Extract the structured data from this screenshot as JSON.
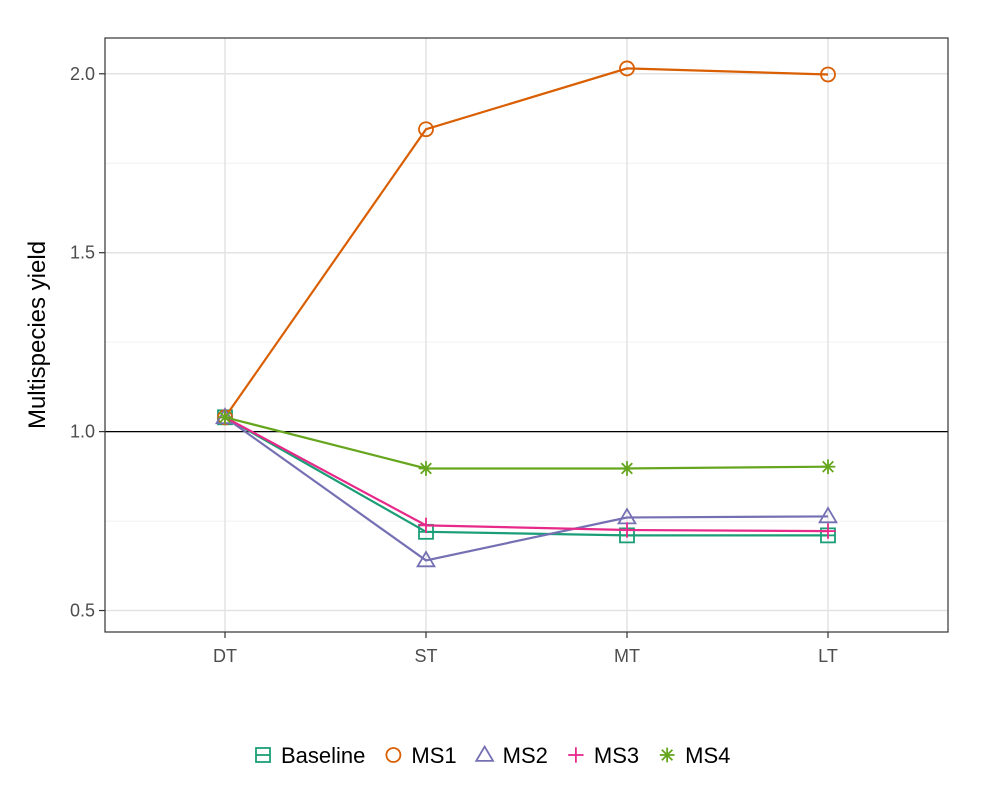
{
  "chart_data": {
    "type": "line",
    "title": "",
    "xlabel": "",
    "ylabel": "Multispecies yield",
    "categories": [
      "DT",
      "ST",
      "MT",
      "LT"
    ],
    "ylim": [
      0.44,
      2.1
    ],
    "yticks": [
      0.5,
      1.0,
      1.5,
      2.0
    ],
    "ytick_labels": [
      "0.5",
      "1.0",
      "1.5",
      "2.0"
    ],
    "reference_line": 1.0,
    "grid": true,
    "legend_position": "bottom",
    "series": [
      {
        "name": "Baseline",
        "color": "#1b9e77",
        "marker": "square-plus",
        "values": [
          1.04,
          0.72,
          0.71,
          0.71
        ]
      },
      {
        "name": "MS1",
        "color": "#d95f02",
        "marker": "circle",
        "values": [
          1.04,
          1.845,
          2.015,
          1.998
        ]
      },
      {
        "name": "MS2",
        "color": "#7570b3",
        "marker": "triangle",
        "values": [
          1.04,
          0.64,
          0.76,
          0.763
        ]
      },
      {
        "name": "MS3",
        "color": "#e7298a",
        "marker": "plus",
        "values": [
          1.04,
          0.738,
          0.725,
          0.722
        ]
      },
      {
        "name": "MS4",
        "color": "#66a61e",
        "marker": "asterisk",
        "values": [
          1.04,
          0.897,
          0.897,
          0.902
        ]
      }
    ]
  }
}
